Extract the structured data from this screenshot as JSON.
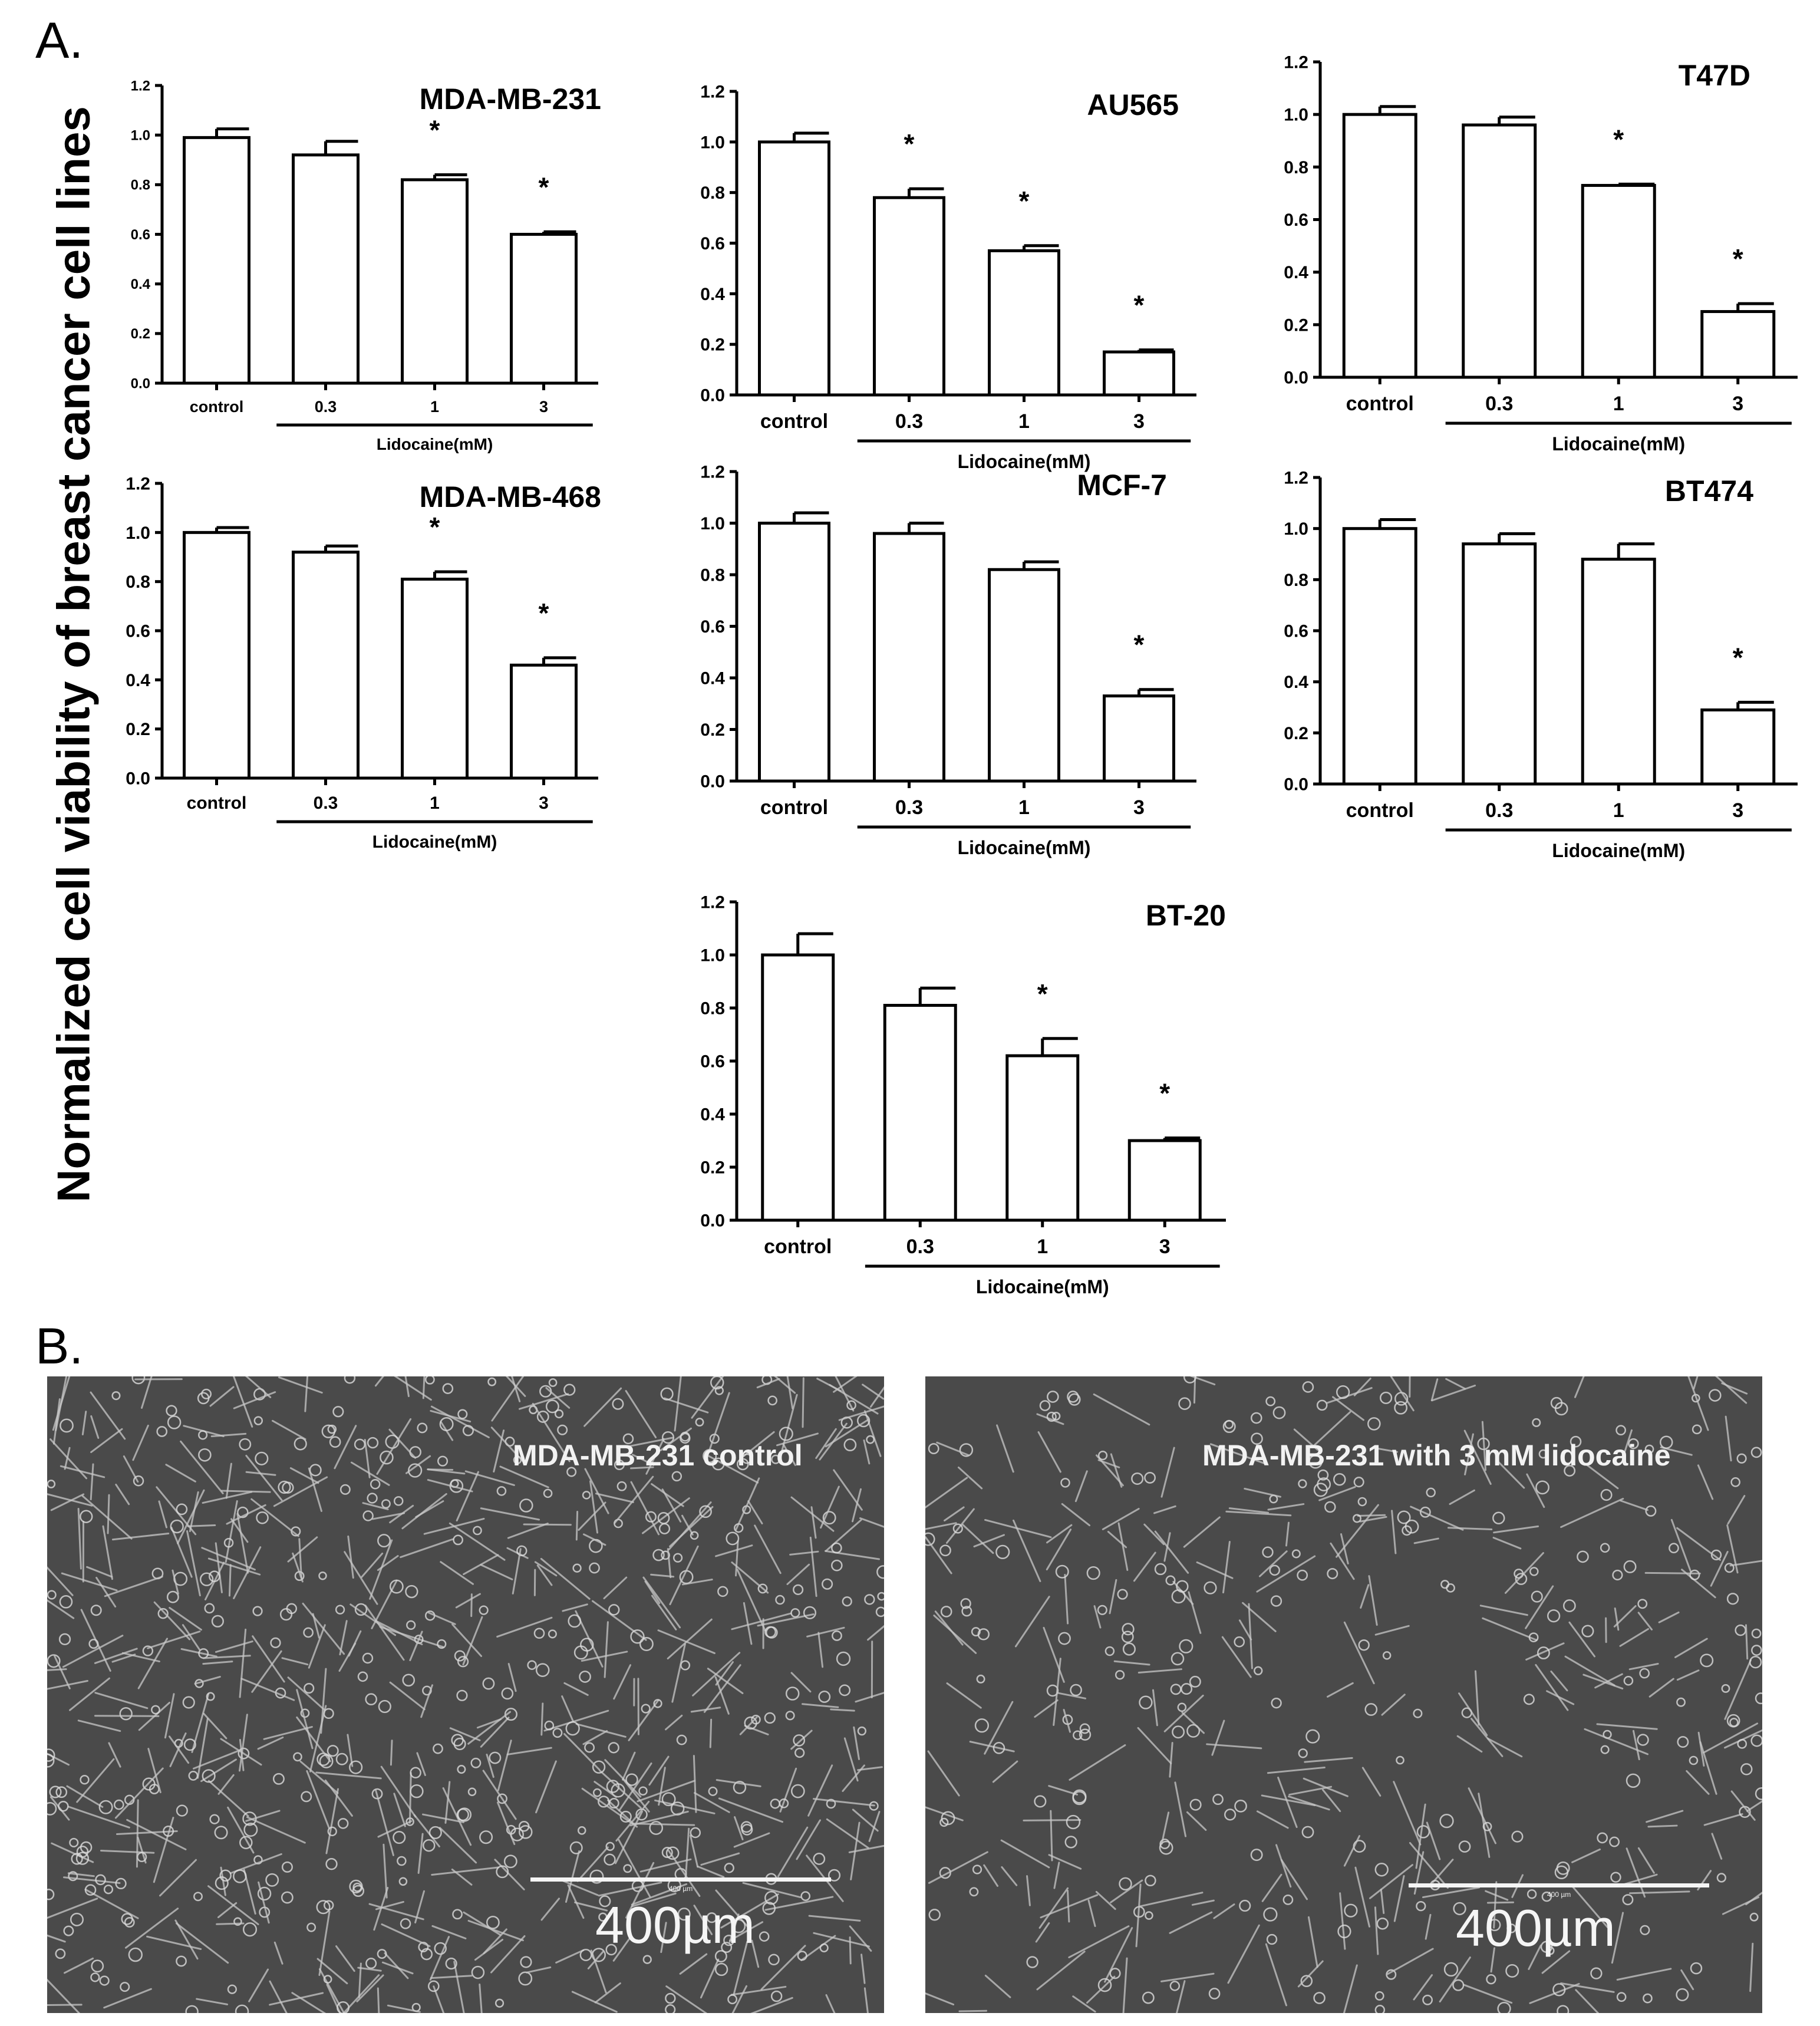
{
  "panels": {
    "a_label": "A.",
    "b_label": "B."
  },
  "shared": {
    "ylabel": "Normalized cell viability of breast cancer cell lines",
    "xgroup_label": "Lidocaine(mM)"
  },
  "chart_data": [
    {
      "type": "bar",
      "title": "MDA-MB-231",
      "categories": [
        "control",
        "0.3",
        "1",
        "3"
      ],
      "values": [
        0.99,
        0.92,
        0.82,
        0.6
      ],
      "errors": [
        0.035,
        0.055,
        0.02,
        0.01
      ],
      "significance": [
        "",
        "",
        "*",
        "*"
      ],
      "ylim": [
        0,
        1.2
      ],
      "yticks": [
        "0.0",
        "0.2",
        "0.4",
        "0.6",
        "0.8",
        "1.0",
        "1.2"
      ],
      "xgroup_label": "Lidocaine(mM)"
    },
    {
      "type": "bar",
      "title": "AU565",
      "categories": [
        "control",
        "0.3",
        "1",
        "3"
      ],
      "values": [
        1.0,
        0.78,
        0.57,
        0.17
      ],
      "errors": [
        0.035,
        0.035,
        0.02,
        0.008
      ],
      "significance": [
        "",
        "*",
        "*",
        "*"
      ],
      "ylim": [
        0,
        1.2
      ],
      "yticks": [
        "0.0",
        "0.2",
        "0.4",
        "0.6",
        "0.8",
        "1.0",
        "1.2"
      ],
      "xgroup_label": "Lidocaine(mM)"
    },
    {
      "type": "bar",
      "title": "T47D",
      "categories": [
        "control",
        "0.3",
        "1",
        "3"
      ],
      "values": [
        1.0,
        0.96,
        0.73,
        0.25
      ],
      "errors": [
        0.03,
        0.03,
        0.005,
        0.03
      ],
      "significance": [
        "",
        "",
        "*",
        "*"
      ],
      "ylim": [
        0,
        1.2
      ],
      "yticks": [
        "0.0",
        "0.2",
        "0.4",
        "0.6",
        "0.8",
        "1.0",
        "1.2"
      ],
      "xgroup_label": "Lidocaine(mM)"
    },
    {
      "type": "bar",
      "title": "MDA-MB-468",
      "categories": [
        "control",
        "0.3",
        "1",
        "3"
      ],
      "values": [
        1.0,
        0.92,
        0.81,
        0.46
      ],
      "errors": [
        0.02,
        0.025,
        0.03,
        0.03
      ],
      "significance": [
        "",
        "",
        "*",
        "*"
      ],
      "ylim": [
        0,
        1.2
      ],
      "yticks": [
        "0.0",
        "0.2",
        "0.4",
        "0.6",
        "0.8",
        "1.0",
        "1.2"
      ],
      "xgroup_label": "Lidocaine(mM)"
    },
    {
      "type": "bar",
      "title": "MCF-7",
      "categories": [
        "control",
        "0.3",
        "1",
        "3"
      ],
      "values": [
        1.0,
        0.96,
        0.82,
        0.33
      ],
      "errors": [
        0.04,
        0.04,
        0.03,
        0.025
      ],
      "significance": [
        "",
        "",
        "",
        "*"
      ],
      "ylim": [
        0,
        1.2
      ],
      "yticks": [
        "0.0",
        "0.2",
        "0.4",
        "0.6",
        "0.8",
        "1.0",
        "1.2"
      ],
      "xgroup_label": "Lidocaine(mM)"
    },
    {
      "type": "bar",
      "title": "BT474",
      "categories": [
        "control",
        "0.3",
        "1",
        "3"
      ],
      "values": [
        1.0,
        0.94,
        0.88,
        0.29
      ],
      "errors": [
        0.035,
        0.04,
        0.06,
        0.03
      ],
      "significance": [
        "",
        "",
        "",
        "*"
      ],
      "ylim": [
        0,
        1.2
      ],
      "yticks": [
        "0.0",
        "0.2",
        "0.4",
        "0.6",
        "0.8",
        "1.0",
        "1.2"
      ],
      "xgroup_label": "Lidocaine(mM)"
    },
    {
      "type": "bar",
      "title": "BT-20",
      "categories": [
        "control",
        "0.3",
        "1",
        "3"
      ],
      "values": [
        1.0,
        0.81,
        0.62,
        0.3
      ],
      "errors": [
        0.08,
        0.065,
        0.065,
        0.01
      ],
      "significance": [
        "",
        "",
        "*",
        "*"
      ],
      "ylim": [
        0,
        1.2
      ],
      "yticks": [
        "0.0",
        "0.2",
        "0.4",
        "0.6",
        "0.8",
        "1.0",
        "1.2"
      ],
      "xgroup_label": "Lidocaine(mM)"
    }
  ],
  "micrographs": [
    {
      "caption": "MDA-MB-231 control",
      "scale_text": "400µm",
      "scale_small": "400 µm"
    },
    {
      "caption": "MDA-MB-231 with 3 mM lidocaine",
      "scale_text": "400µm",
      "scale_small": "400 µm"
    }
  ]
}
